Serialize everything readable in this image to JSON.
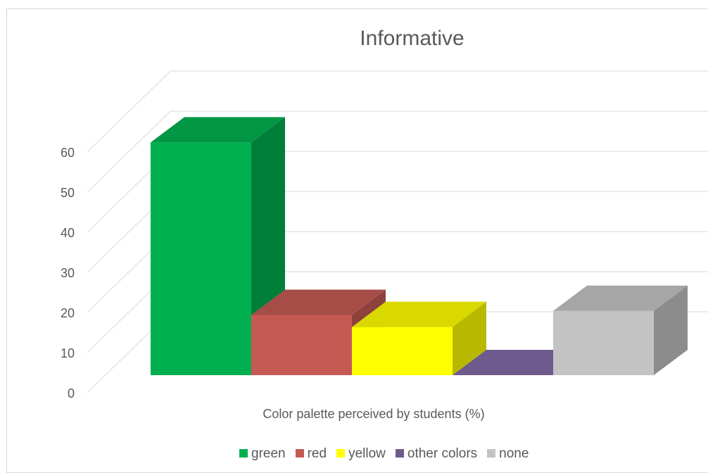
{
  "chart_data": {
    "type": "bar",
    "title": "Informative",
    "xlabel": "Color palette perceived by students (%)",
    "ylabel": "",
    "ylim": [
      0,
      60
    ],
    "yticks": [
      0,
      10,
      20,
      30,
      40,
      50,
      60
    ],
    "grid": true,
    "legend_position": "bottom",
    "series": [
      {
        "name": "green",
        "value": 58,
        "color": "#00b050"
      },
      {
        "name": "red",
        "value": 15,
        "color": "#c55a55"
      },
      {
        "name": "yellow",
        "value": 12,
        "color": "#ffff00"
      },
      {
        "name": "other colors",
        "value": 0,
        "color": "#6e5a8c"
      },
      {
        "name": "none",
        "value": 16,
        "color": "#c3c3c3"
      }
    ]
  }
}
